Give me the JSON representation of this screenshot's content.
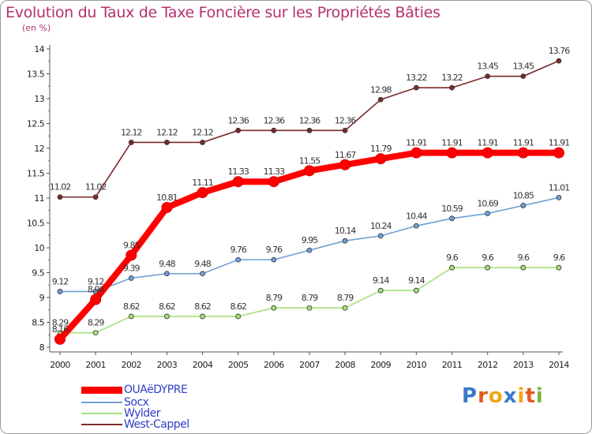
{
  "title": "Evolution du Taux de Taxe Foncière sur les Propriétés Bâties",
  "unit": "(en %)",
  "chart_data": {
    "type": "line",
    "title": "Evolution du Taux de Taxe Foncière sur les Propriétés Bâties",
    "ylabel": "(en %)",
    "xlabel": "",
    "ylim": [
      8,
      14
    ],
    "yticks": [
      "8",
      "8.5",
      "9",
      "9.5",
      "10",
      "10.5",
      "11",
      "11.5",
      "12",
      "12.5",
      "13",
      "13.5",
      "14"
    ],
    "categories": [
      "2000",
      "2001",
      "2002",
      "2003",
      "2004",
      "2005",
      "2006",
      "2007",
      "2008",
      "2009",
      "2010",
      "2011",
      "2012",
      "2013",
      "2014"
    ],
    "series": [
      {
        "name": "West-Cappel",
        "color": "#7a2a2a",
        "values": [
          11.02,
          11.02,
          12.12,
          12.12,
          12.12,
          12.36,
          12.36,
          12.36,
          12.36,
          12.98,
          13.22,
          13.22,
          13.45,
          13.45,
          13.76
        ],
        "labels": [
          "11.02",
          "11.02",
          "12.12",
          "12.12",
          "12.12",
          "12.36",
          "12.36",
          "12.36",
          "12.36",
          "12.98",
          "13.22",
          "13.22",
          "13.45",
          "13.45",
          "13.76"
        ]
      },
      {
        "name": "Socx",
        "color": "#6fa0d4",
        "values": [
          9.12,
          9.12,
          9.39,
          9.48,
          9.48,
          9.76,
          9.76,
          9.95,
          10.14,
          10.24,
          10.44,
          10.59,
          10.69,
          10.85,
          11.01
        ],
        "labels": [
          "9.12",
          "9.12",
          "9.39",
          "9.48",
          "9.48",
          "9.76",
          "9.76",
          "9.95",
          "10.14",
          "10.24",
          "10.44",
          "10.59",
          "10.69",
          "10.85",
          "11.01"
        ]
      },
      {
        "name": "Wylder",
        "color": "#a6e07a",
        "values": [
          8.29,
          8.29,
          8.62,
          8.62,
          8.62,
          8.62,
          8.79,
          8.79,
          8.79,
          9.14,
          9.14,
          9.6,
          9.6,
          9.6,
          9.6
        ],
        "labels": [
          "8.29",
          "8.29",
          "8.62",
          "8.62",
          "8.62",
          "8.62",
          "8.79",
          "8.79",
          "8.79",
          "9.14",
          "9.14",
          "9.6",
          "9.6",
          "9.6",
          "9.6"
        ]
      },
      {
        "name": "OUAëDYPRE",
        "color": "#ff0000",
        "values": [
          8.16,
          8.96,
          9.85,
          10.81,
          11.11,
          11.33,
          11.33,
          11.55,
          11.67,
          11.79,
          11.91,
          11.91,
          11.91,
          11.91,
          11.91
        ],
        "labels": [
          "8.16",
          "8.96",
          "9.85",
          "10.81",
          "11.11",
          "11.33",
          "11.33",
          "11.55",
          "11.67",
          "11.79",
          "11.91",
          "11.91",
          "11.91",
          "11.91",
          "11.91"
        ]
      }
    ],
    "legend_order": [
      "OUAëDYPRE",
      "Socx",
      "Wylder",
      "West-Cappel"
    ],
    "legend_position": "bottom-left",
    "grid": false
  },
  "legend": {
    "items": [
      {
        "label": "OUAëDYPRE",
        "color": "#ff0000"
      },
      {
        "label": "Socx",
        "color": "#6fa0d4"
      },
      {
        "label": "Wylder",
        "color": "#a6e07a"
      },
      {
        "label": "West-Cappel",
        "color": "#7a2a2a"
      }
    ]
  },
  "logo": {
    "letters": [
      "P",
      "r",
      "o",
      "x",
      "i",
      "t",
      "i"
    ],
    "colors": [
      "#3a78c9",
      "#e05a1e",
      "#f2a516",
      "#3a78c9",
      "#f2a516",
      "#e05a1e",
      "#7cb53a"
    ]
  }
}
